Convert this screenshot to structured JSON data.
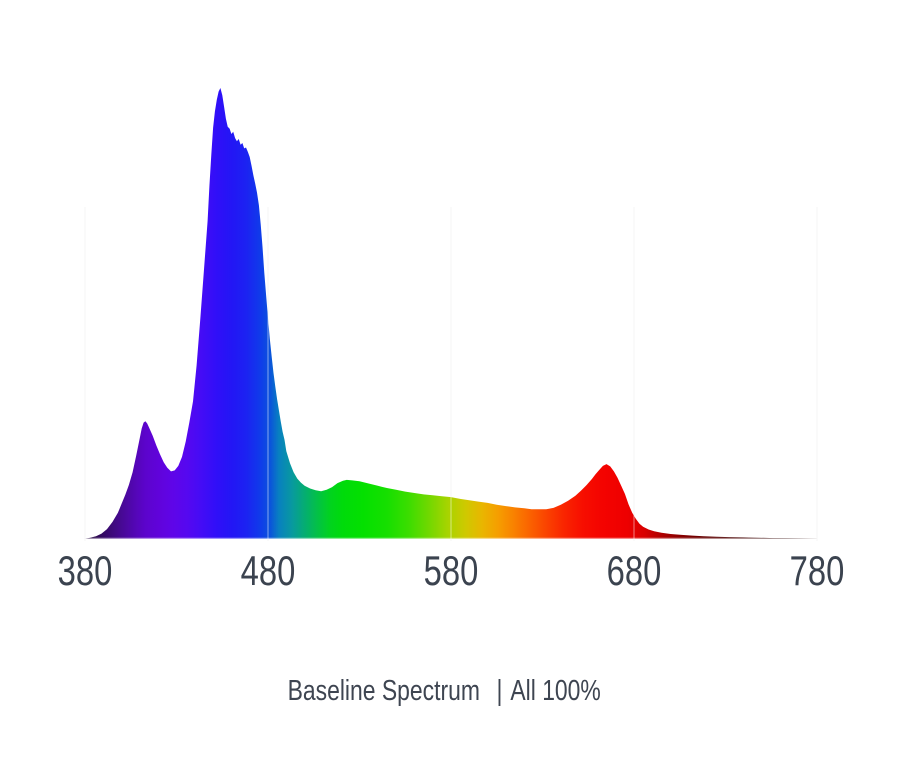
{
  "page": {
    "background": "#ffffff"
  },
  "caption": {
    "main": "Baseline Spectrum",
    "separator": "|",
    "detail": "All 100%"
  },
  "chart_data": {
    "type": "area",
    "title": "Baseline Spectrum | All 100%",
    "subtitle": "",
    "legend": "none",
    "grid": {
      "vertical": true,
      "horizontal": false
    },
    "gridline_color": "#ececec",
    "text_color": "#3b434f",
    "x_axis": {
      "range": [
        380,
        780
      ],
      "ticks": [
        380,
        480,
        580,
        680,
        780
      ],
      "tick_labels": [
        "380",
        "480",
        "580",
        "680",
        "780"
      ]
    },
    "y_axis": {
      "range": [
        0,
        1
      ],
      "ticks": [],
      "visible": false
    },
    "series": [
      {
        "name": "baseline-spectrum-all-channels-100%",
        "points": [
          [
            380,
            0.0
          ],
          [
            383,
            0.003
          ],
          [
            386,
            0.006
          ],
          [
            389,
            0.012
          ],
          [
            392,
            0.022
          ],
          [
            395,
            0.038
          ],
          [
            398,
            0.058
          ],
          [
            400,
            0.078
          ],
          [
            402,
            0.098
          ],
          [
            404,
            0.12
          ],
          [
            406,
            0.148
          ],
          [
            408,
            0.185
          ],
          [
            410,
            0.225
          ],
          [
            411,
            0.245
          ],
          [
            412,
            0.258
          ],
          [
            413,
            0.261
          ],
          [
            414,
            0.256
          ],
          [
            415,
            0.247
          ],
          [
            417,
            0.229
          ],
          [
            419,
            0.207
          ],
          [
            421,
            0.188
          ],
          [
            423,
            0.17
          ],
          [
            425,
            0.158
          ],
          [
            427,
            0.15
          ],
          [
            429,
            0.152
          ],
          [
            431,
            0.162
          ],
          [
            433,
            0.182
          ],
          [
            435,
            0.216
          ],
          [
            437,
            0.258
          ],
          [
            439,
            0.305
          ],
          [
            441,
            0.385
          ],
          [
            443,
            0.488
          ],
          [
            445,
            0.595
          ],
          [
            447,
            0.705
          ],
          [
            448,
            0.782
          ],
          [
            449,
            0.852
          ],
          [
            450,
            0.912
          ],
          [
            451,
            0.948
          ],
          [
            452,
            0.974
          ],
          [
            453,
            0.992
          ],
          [
            454,
            1.0
          ],
          [
            455,
            0.984
          ],
          [
            456,
            0.958
          ],
          [
            457,
            0.932
          ],
          [
            458,
            0.914
          ],
          [
            459,
            0.91
          ],
          [
            460,
            0.898
          ],
          [
            461,
            0.903
          ],
          [
            462,
            0.889
          ],
          [
            463,
            0.882
          ],
          [
            464,
            0.887
          ],
          [
            465,
            0.874
          ],
          [
            466,
            0.878
          ],
          [
            467,
            0.866
          ],
          [
            468,
            0.868
          ],
          [
            469,
            0.858
          ],
          [
            470,
            0.847
          ],
          [
            471,
            0.828
          ],
          [
            472,
            0.806
          ],
          [
            473,
            0.788
          ],
          [
            474,
            0.768
          ],
          [
            475,
            0.74
          ],
          [
            476,
            0.698
          ],
          [
            477,
            0.648
          ],
          [
            478,
            0.59
          ],
          [
            479,
            0.538
          ],
          [
            480,
            0.49
          ],
          [
            481,
            0.444
          ],
          [
            482,
            0.404
          ],
          [
            483,
            0.368
          ],
          [
            484,
            0.338
          ],
          [
            485,
            0.31
          ],
          [
            486,
            0.284
          ],
          [
            487,
            0.26
          ],
          [
            488,
            0.238
          ],
          [
            489,
            0.22
          ],
          [
            490,
            0.195
          ],
          [
            492,
            0.168
          ],
          [
            494,
            0.148
          ],
          [
            496,
            0.134
          ],
          [
            498,
            0.125
          ],
          [
            500,
            0.118
          ],
          [
            503,
            0.112
          ],
          [
            506,
            0.108
          ],
          [
            509,
            0.106
          ],
          [
            512,
            0.109
          ],
          [
            515,
            0.115
          ],
          [
            518,
            0.124
          ],
          [
            521,
            0.129
          ],
          [
            523,
            0.131
          ],
          [
            526,
            0.13
          ],
          [
            530,
            0.128
          ],
          [
            535,
            0.123
          ],
          [
            540,
            0.118
          ],
          [
            545,
            0.113
          ],
          [
            550,
            0.109
          ],
          [
            555,
            0.105
          ],
          [
            560,
            0.102
          ],
          [
            565,
            0.099
          ],
          [
            570,
            0.097
          ],
          [
            575,
            0.095
          ],
          [
            580,
            0.093
          ],
          [
            585,
            0.089
          ],
          [
            590,
            0.086
          ],
          [
            595,
            0.083
          ],
          [
            600,
            0.08
          ],
          [
            605,
            0.076
          ],
          [
            610,
            0.073
          ],
          [
            615,
            0.07
          ],
          [
            620,
            0.068
          ],
          [
            624,
            0.066
          ],
          [
            628,
            0.066
          ],
          [
            632,
            0.066
          ],
          [
            636,
            0.069
          ],
          [
            640,
            0.076
          ],
          [
            644,
            0.085
          ],
          [
            648,
            0.096
          ],
          [
            651,
            0.107
          ],
          [
            654,
            0.119
          ],
          [
            657,
            0.133
          ],
          [
            659,
            0.144
          ],
          [
            661,
            0.153
          ],
          [
            663,
            0.162
          ],
          [
            665,
            0.166
          ],
          [
            667,
            0.161
          ],
          [
            669,
            0.15
          ],
          [
            671,
            0.136
          ],
          [
            673,
            0.118
          ],
          [
            675,
            0.1
          ],
          [
            677,
            0.077
          ],
          [
            679,
            0.058
          ],
          [
            681,
            0.045
          ],
          [
            683,
            0.034
          ],
          [
            685,
            0.027
          ],
          [
            688,
            0.021
          ],
          [
            691,
            0.017
          ],
          [
            695,
            0.014
          ],
          [
            700,
            0.011
          ],
          [
            706,
            0.009
          ],
          [
            712,
            0.0075
          ],
          [
            718,
            0.0063
          ],
          [
            725,
            0.0052
          ],
          [
            732,
            0.0043
          ],
          [
            740,
            0.0035
          ],
          [
            748,
            0.0028
          ],
          [
            756,
            0.0021
          ],
          [
            763,
            0.0015
          ],
          [
            770,
            0.001
          ],
          [
            776,
            0.0005
          ],
          [
            780,
            0.0002
          ]
        ]
      }
    ],
    "wavelength_gradient_stops": [
      [
        380,
        "#23073d"
      ],
      [
        386,
        "#2c0950"
      ],
      [
        393,
        "#3a0a72"
      ],
      [
        400,
        "#470994"
      ],
      [
        407,
        "#5306b4"
      ],
      [
        413,
        "#5c04cc"
      ],
      [
        420,
        "#6003da"
      ],
      [
        428,
        "#5f05e8"
      ],
      [
        436,
        "#5508f0"
      ],
      [
        444,
        "#430cf6"
      ],
      [
        452,
        "#300ff8"
      ],
      [
        460,
        "#2316f5"
      ],
      [
        468,
        "#1c22f2"
      ],
      [
        476,
        "#0f3cea"
      ],
      [
        481,
        "#0b52dc"
      ],
      [
        486,
        "#0880c0"
      ],
      [
        493,
        "#0899a0"
      ],
      [
        500,
        "#05ad72"
      ],
      [
        507,
        "#03c146"
      ],
      [
        514,
        "#01d31e"
      ],
      [
        521,
        "#00db0a"
      ],
      [
        532,
        "#04e000"
      ],
      [
        545,
        "#16df00"
      ],
      [
        557,
        "#3cdd00"
      ],
      [
        568,
        "#72d800"
      ],
      [
        578,
        "#a6d400"
      ],
      [
        588,
        "#cfc900"
      ],
      [
        597,
        "#e9b600"
      ],
      [
        606,
        "#f69d00"
      ],
      [
        615,
        "#f97f00"
      ],
      [
        624,
        "#fa5f00"
      ],
      [
        633,
        "#fa4000"
      ],
      [
        642,
        "#f92400"
      ],
      [
        652,
        "#f70e00"
      ],
      [
        663,
        "#f40300"
      ],
      [
        676,
        "#ee0000"
      ],
      [
        686,
        "#d70000"
      ],
      [
        695,
        "#b00000"
      ],
      [
        705,
        "#8a0000"
      ],
      [
        718,
        "#660000"
      ],
      [
        733,
        "#4b0000"
      ],
      [
        750,
        "#370000"
      ],
      [
        765,
        "#2a0000"
      ],
      [
        780,
        "#220000"
      ]
    ]
  }
}
